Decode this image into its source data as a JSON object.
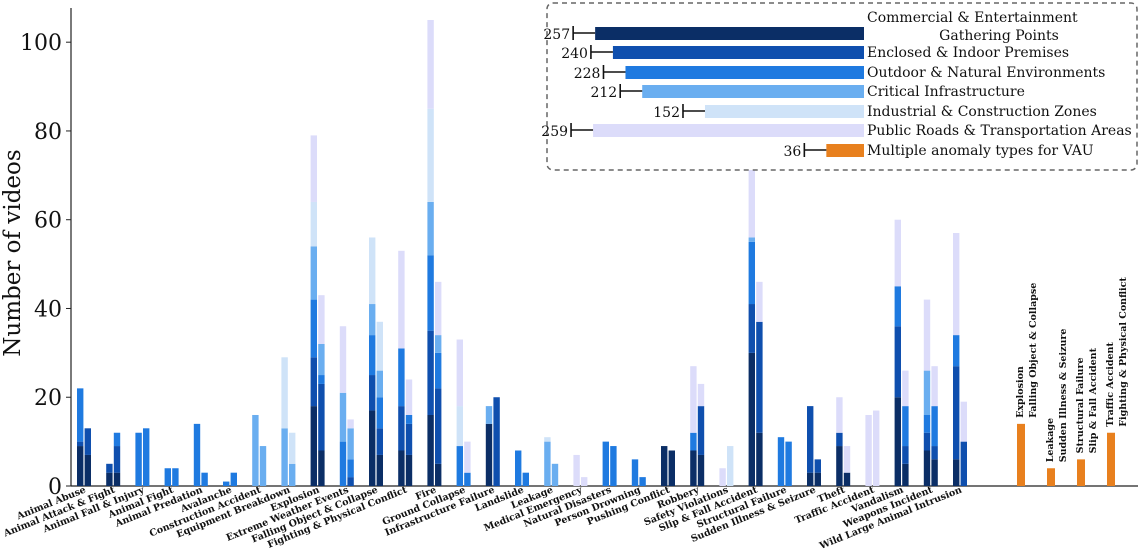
{
  "chart_data": {
    "type": "bar",
    "title": "",
    "xlabel": "",
    "ylabel": "Number of videos",
    "ylim": [
      0,
      105
    ],
    "yticks": [
      0,
      20,
      40,
      60,
      80,
      100
    ],
    "stack_order_bottom_to_top": [
      "Commercial & Entertainment Gathering Points",
      "Enclosed & Indoor Premises",
      "Outdoor & Natural Environments",
      "Critical Infrastructure",
      "Industrial & Construction Zones",
      "Public Roads & Transportation Areas"
    ],
    "series_colors": [
      "#0b2e66",
      "#0f4fae",
      "#1f7ae0",
      "#6aaef0",
      "#cfe3f8",
      "#dcdcfa"
    ],
    "categories": [
      {
        "name": "Animal Abuse",
        "bars": [
          [
            9,
            1,
            12,
            0,
            0,
            0
          ],
          [
            7,
            6,
            0,
            0,
            0,
            0
          ]
        ]
      },
      {
        "name": "Animal Attack & Fight",
        "bars": [
          [
            3,
            2,
            0,
            0,
            0,
            0
          ],
          [
            3,
            6,
            3,
            0,
            0,
            0
          ]
        ]
      },
      {
        "name": "Animal Fall & Injury",
        "bars": [
          [
            0,
            0,
            12,
            0,
            0,
            0
          ],
          [
            0,
            0,
            13,
            0,
            0,
            0
          ]
        ]
      },
      {
        "name": "Animal Fight",
        "bars": [
          [
            0,
            0,
            4,
            0,
            0,
            0
          ],
          [
            0,
            0,
            4,
            0,
            0,
            0
          ]
        ]
      },
      {
        "name": "Animal Predation",
        "bars": [
          [
            0,
            0,
            14,
            0,
            0,
            0
          ],
          [
            0,
            0,
            3,
            0,
            0,
            0
          ]
        ]
      },
      {
        "name": "Avalanche",
        "bars": [
          [
            0,
            0,
            1,
            0,
            0,
            0
          ],
          [
            0,
            0,
            3,
            0,
            0,
            0
          ]
        ]
      },
      {
        "name": "Construction Accident",
        "bars": [
          [
            0,
            0,
            0,
            16,
            0,
            0
          ],
          [
            0,
            0,
            0,
            9,
            0,
            0
          ]
        ]
      },
      {
        "name": "Equipment Breakdown",
        "bars": [
          [
            0,
            0,
            0,
            13,
            16,
            0
          ],
          [
            0,
            0,
            0,
            5,
            7,
            0
          ]
        ]
      },
      {
        "name": "Explosion",
        "bars": [
          [
            18,
            11,
            13,
            12,
            10,
            15
          ],
          [
            8,
            15,
            2,
            7,
            0,
            11
          ]
        ]
      },
      {
        "name": "Extreme Weather Events",
        "bars": [
          [
            0,
            0,
            10,
            11,
            0,
            15
          ],
          [
            0,
            2,
            4,
            7,
            0,
            2
          ]
        ]
      },
      {
        "name": "Falling Object & Collapse",
        "bars": [
          [
            17,
            8,
            9,
            7,
            15,
            0
          ],
          [
            7,
            6,
            7,
            6,
            11,
            0
          ]
        ]
      },
      {
        "name": "Fighting & Physical Conflict",
        "bars": [
          [
            8,
            10,
            13,
            0,
            0,
            22
          ],
          [
            7,
            7,
            2,
            0,
            0,
            8
          ]
        ]
      },
      {
        "name": "Fire",
        "bars": [
          [
            16,
            19,
            17,
            12,
            21,
            20
          ],
          [
            5,
            17,
            8,
            4,
            0,
            12
          ]
        ]
      },
      {
        "name": "Ground Collapse",
        "bars": [
          [
            0,
            0,
            9,
            0,
            9,
            15
          ],
          [
            0,
            0,
            3,
            0,
            0,
            7
          ]
        ]
      },
      {
        "name": "Infrastructure Failure",
        "bars": [
          [
            14,
            0,
            0,
            4,
            0,
            0
          ],
          [
            0,
            20,
            0,
            0,
            0,
            0
          ]
        ]
      },
      {
        "name": "Landslide",
        "bars": [
          [
            0,
            0,
            8,
            0,
            0,
            0
          ],
          [
            0,
            0,
            3,
            0,
            0,
            0
          ]
        ]
      },
      {
        "name": "Leakage",
        "bars": [
          [
            0,
            0,
            0,
            10,
            1,
            0
          ],
          [
            0,
            0,
            0,
            5,
            0,
            0
          ]
        ]
      },
      {
        "name": "Medical Emergency",
        "bars": [
          [
            0,
            0,
            0,
            0,
            0,
            7
          ],
          [
            0,
            0,
            0,
            0,
            0,
            2
          ]
        ]
      },
      {
        "name": "Natural Disasters",
        "bars": [
          [
            0,
            0,
            10,
            0,
            0,
            0
          ],
          [
            0,
            0,
            9,
            0,
            0,
            0
          ]
        ]
      },
      {
        "name": "Person Drowning",
        "bars": [
          [
            0,
            0,
            6,
            0,
            0,
            0
          ],
          [
            0,
            0,
            2,
            0,
            0,
            0
          ]
        ]
      },
      {
        "name": "Pushing Conflict",
        "bars": [
          [
            9,
            0,
            0,
            0,
            0,
            0
          ],
          [
            8,
            0,
            0,
            0,
            0,
            0
          ]
        ]
      },
      {
        "name": "Robbery",
        "bars": [
          [
            8,
            0,
            4,
            0,
            0,
            15
          ],
          [
            7,
            11,
            0,
            0,
            0,
            5
          ]
        ]
      },
      {
        "name": "Safety Violations",
        "bars": [
          [
            0,
            0,
            0,
            0,
            0,
            4
          ],
          [
            0,
            0,
            0,
            0,
            9,
            0
          ]
        ]
      },
      {
        "name": "Slip & Fall Accident",
        "bars": [
          [
            30,
            11,
            14,
            1,
            0,
            17
          ],
          [
            12,
            25,
            0,
            0,
            0,
            9
          ]
        ]
      },
      {
        "name": "Structural Failure",
        "bars": [
          [
            0,
            0,
            11,
            0,
            0,
            0
          ],
          [
            0,
            0,
            10,
            0,
            0,
            0
          ]
        ]
      },
      {
        "name": "Sudden Illness & Seizure",
        "bars": [
          [
            3,
            15,
            0,
            0,
            0,
            0
          ],
          [
            3,
            3,
            0,
            0,
            0,
            0
          ]
        ]
      },
      {
        "name": "Theft",
        "bars": [
          [
            9,
            3,
            0,
            0,
            0,
            8
          ],
          [
            3,
            0,
            0,
            0,
            0,
            6
          ]
        ]
      },
      {
        "name": "Traffic Accident",
        "bars": [
          [
            0,
            0,
            0,
            0,
            0,
            16
          ],
          [
            0,
            0,
            0,
            0,
            0,
            17
          ]
        ]
      },
      {
        "name": "Vandalism",
        "bars": [
          [
            20,
            16,
            9,
            0,
            0,
            15
          ],
          [
            5,
            4,
            9,
            0,
            0,
            8
          ]
        ]
      },
      {
        "name": "Weapons Incident",
        "bars": [
          [
            8,
            4,
            4,
            10,
            0,
            16
          ],
          [
            6,
            3,
            9,
            0,
            0,
            9
          ]
        ]
      },
      {
        "name": "Wild Large Animal Intrusion",
        "bars": [
          [
            6,
            21,
            7,
            0,
            0,
            23
          ],
          [
            0,
            10,
            0,
            0,
            0,
            9
          ]
        ]
      }
    ],
    "multi_anomaly": {
      "color": "#e8801e",
      "bars": [
        {
          "labels": [
            "Explosion",
            "Falling Object & Collapse"
          ],
          "value": 14
        },
        {
          "labels": [
            "Leakage",
            "Sudden Illness & Seizure"
          ],
          "value": 4
        },
        {
          "labels": [
            "Structural Failure",
            "Slip & Fall Accident"
          ],
          "value": 6
        },
        {
          "labels": [
            "Traffic Accident",
            "Fighting & Physical Conflict"
          ],
          "value": 12
        }
      ]
    },
    "legend": {
      "position": "top-right",
      "scale_max": 260,
      "entries": [
        {
          "label": "Commercial & Entertainment Gathering Points",
          "lines": [
            "Commercial & Entertainment",
            "Gathering Points"
          ],
          "value": 257,
          "color": "#0b2e66"
        },
        {
          "label": "Enclosed & Indoor Premises",
          "lines": [
            "Enclosed & Indoor Premises"
          ],
          "value": 240,
          "color": "#0f4fae"
        },
        {
          "label": "Outdoor & Natural Environments",
          "lines": [
            "Outdoor & Natural Environments"
          ],
          "value": 228,
          "color": "#1f7ae0"
        },
        {
          "label": "Critical Infrastructure",
          "lines": [
            "Critical Infrastructure"
          ],
          "value": 212,
          "color": "#6aaef0"
        },
        {
          "label": "Industrial & Construction Zones",
          "lines": [
            "Industrial & Construction Zones"
          ],
          "value": 152,
          "color": "#cfe3f8"
        },
        {
          "label": "Public Roads & Transportation Areas",
          "lines": [
            "Public Roads & Transportation Areas"
          ],
          "value": 259,
          "color": "#dcdcfa"
        },
        {
          "label": "Multiple anomaly types for VAU",
          "lines": [
            "Multiple anomaly types for VAU"
          ],
          "value": 36,
          "color": "#e8801e"
        }
      ]
    }
  }
}
